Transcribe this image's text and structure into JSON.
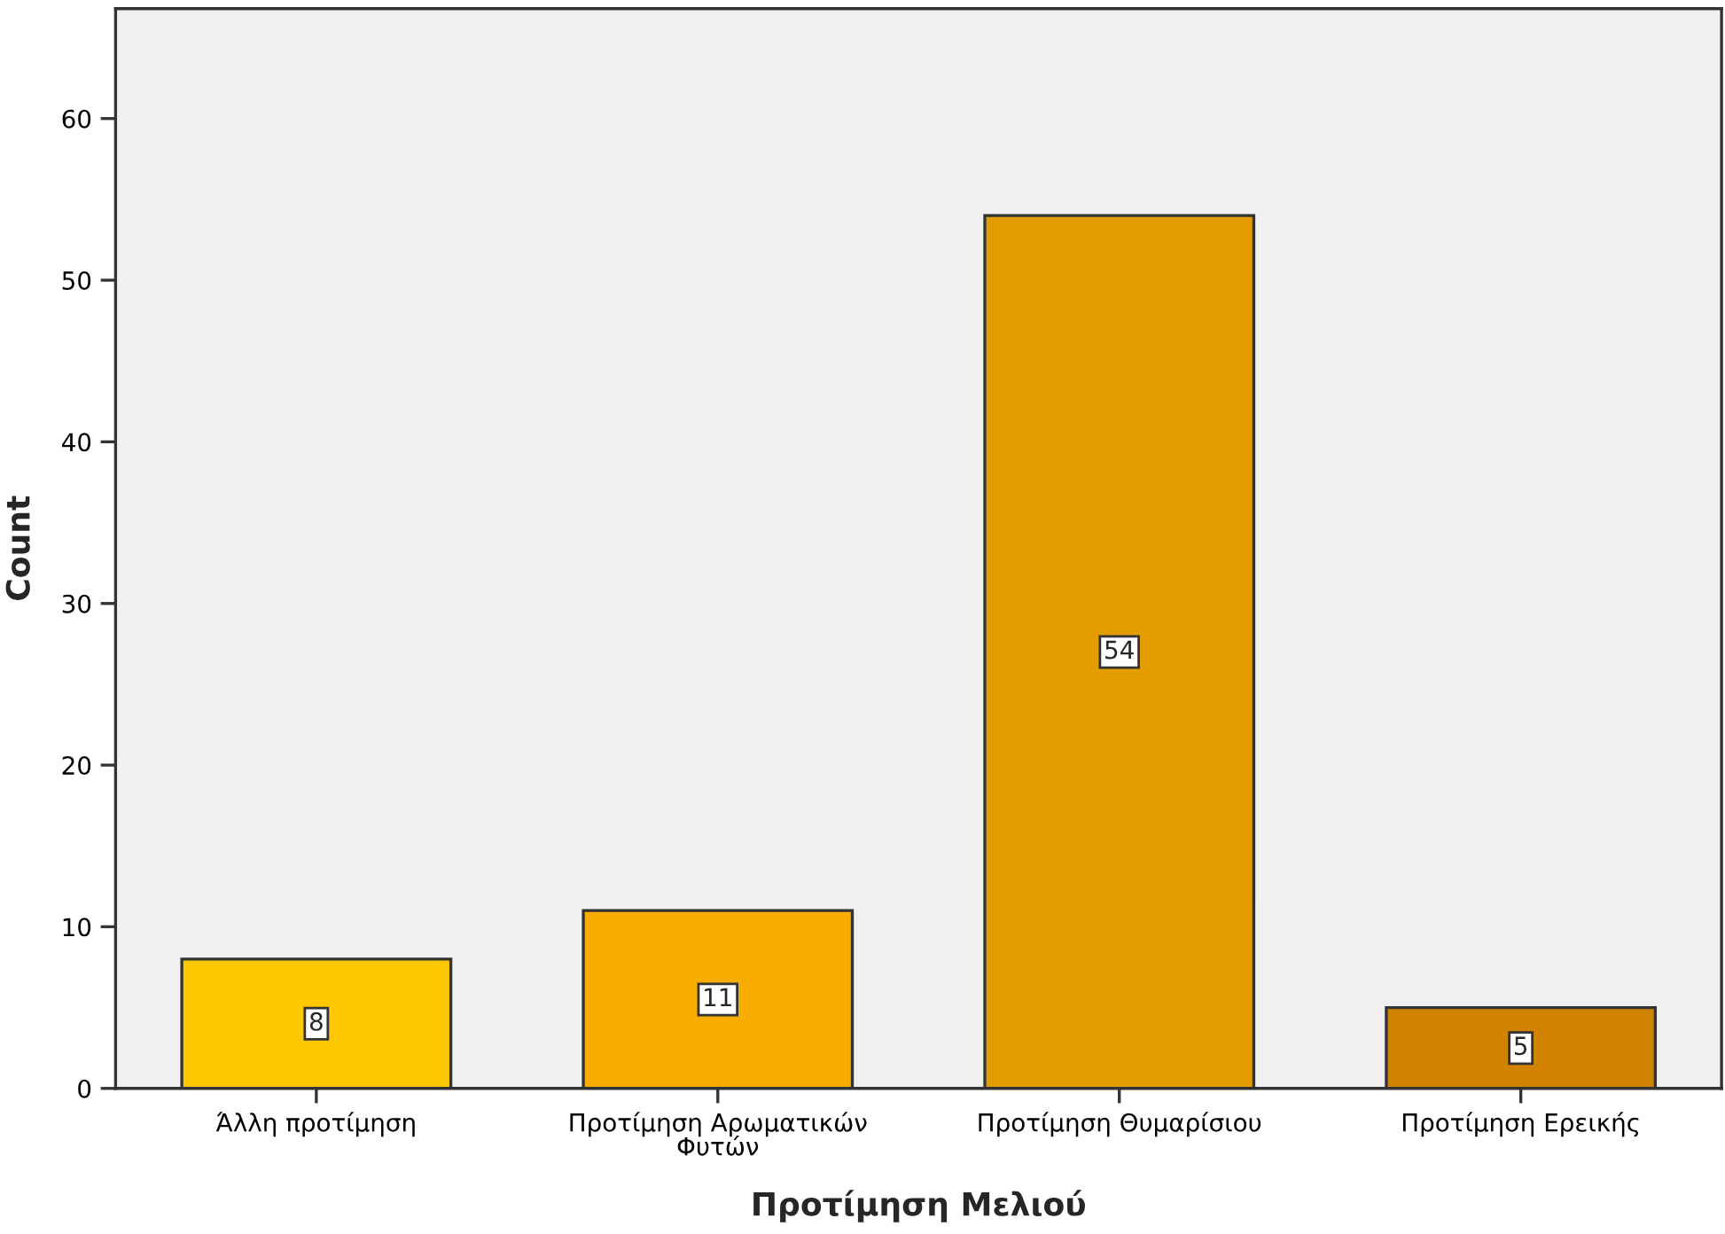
{
  "chart_data": {
    "type": "bar",
    "xlabel": "Προτίμηση Μελιού",
    "ylabel": "Count",
    "categories": [
      "Άλλη προτίμηση",
      "Προτίμηση Αρωματικών Φυτών",
      "Προτίμηση Θυμαρίσιου",
      "Προτίμηση Ερεικής"
    ],
    "values": [
      8,
      11,
      54,
      5
    ],
    "colors": [
      "#fdc800",
      "#f9ad00",
      "#e39c00",
      "#d18200"
    ],
    "ylim": [
      0,
      66.8
    ],
    "yticks": [
      0,
      10,
      20,
      30,
      40,
      50,
      60
    ],
    "grid": false,
    "data_labels": true
  }
}
